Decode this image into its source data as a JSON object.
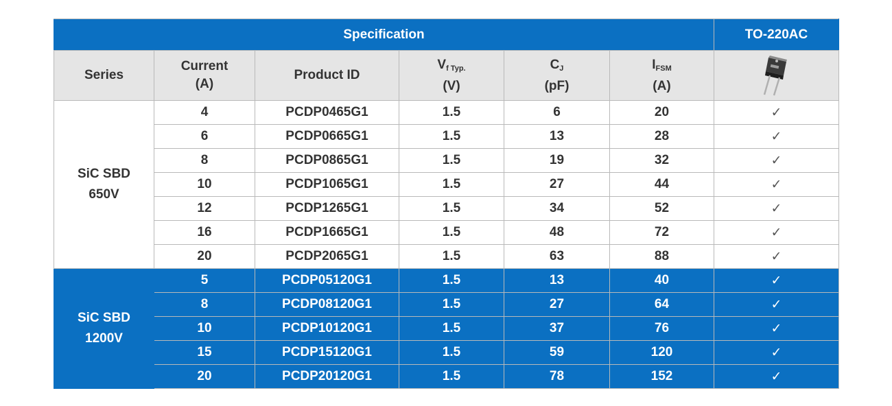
{
  "header": {
    "spec_title": "Specification",
    "package_title": "TO-220AC"
  },
  "columns": {
    "series": "Series",
    "current_line1": "Current",
    "current_line2": "(A)",
    "product_id": "Product ID",
    "vf_main": "V",
    "vf_sub": "f Typ.",
    "vf_unit": "(V)",
    "cj_main": "C",
    "cj_sub": "J",
    "cj_unit": "(pF)",
    "ifsm_main": "I",
    "ifsm_sub": "FSM",
    "ifsm_unit": "(A)",
    "package_icon": "to220-package-icon"
  },
  "groups": [
    {
      "series_line1": "SiC SBD",
      "series_line2": "650V",
      "rows": [
        {
          "current": "4",
          "product_id": "PCDP0465G1",
          "vf": "1.5",
          "cj": "6",
          "ifsm": "20",
          "available": "✓"
        },
        {
          "current": "6",
          "product_id": "PCDP0665G1",
          "vf": "1.5",
          "cj": "13",
          "ifsm": "28",
          "available": "✓"
        },
        {
          "current": "8",
          "product_id": "PCDP0865G1",
          "vf": "1.5",
          "cj": "19",
          "ifsm": "32",
          "available": "✓"
        },
        {
          "current": "10",
          "product_id": "PCDP1065G1",
          "vf": "1.5",
          "cj": "27",
          "ifsm": "44",
          "available": "✓"
        },
        {
          "current": "12",
          "product_id": "PCDP1265G1",
          "vf": "1.5",
          "cj": "34",
          "ifsm": "52",
          "available": "✓"
        },
        {
          "current": "16",
          "product_id": "PCDP1665G1",
          "vf": "1.5",
          "cj": "48",
          "ifsm": "72",
          "available": "✓"
        },
        {
          "current": "20",
          "product_id": "PCDP2065G1",
          "vf": "1.5",
          "cj": "63",
          "ifsm": "88",
          "available": "✓"
        }
      ]
    },
    {
      "series_line1": "SiC SBD",
      "series_line2": "1200V",
      "rows": [
        {
          "current": "5",
          "product_id": "PCDP05120G1",
          "vf": "1.5",
          "cj": "13",
          "ifsm": "40",
          "available": "✓"
        },
        {
          "current": "8",
          "product_id": "PCDP08120G1",
          "vf": "1.5",
          "cj": "27",
          "ifsm": "64",
          "available": "✓"
        },
        {
          "current": "10",
          "product_id": "PCDP10120G1",
          "vf": "1.5",
          "cj": "37",
          "ifsm": "76",
          "available": "✓"
        },
        {
          "current": "15",
          "product_id": "PCDP15120G1",
          "vf": "1.5",
          "cj": "59",
          "ifsm": "120",
          "available": "✓"
        },
        {
          "current": "20",
          "product_id": "PCDP20120G1",
          "vf": "1.5",
          "cj": "78",
          "ifsm": "152",
          "available": "✓"
        }
      ]
    }
  ],
  "colors": {
    "brand_blue": "#0b70c2",
    "header_gray": "#e5e5e5",
    "text_dark": "#333333"
  }
}
